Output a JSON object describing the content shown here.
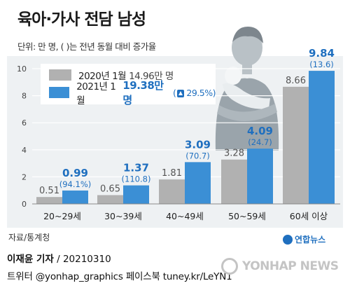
{
  "title": "육아·가사 전담 남성",
  "unit_note": "단위: 만 명, ( )는 전년 동월 대비 증가율",
  "legend": {
    "gray_label": "2020년 1월",
    "gray_value": "14.96만 명",
    "blue_label": "2021년 1월",
    "blue_value": "19.38만 명",
    "blue_change": "29.5%)",
    "blue_change_open": "("
  },
  "source": "자료/통계청",
  "byline_name": "이재윤 기자",
  "byline_date": "/ 20210310",
  "sns_line": "트위터 @yonhap_graphics  페이스북 tuney.kr/LeYN1",
  "logo_small": "연합뉴스",
  "logo_big": "YONHAP NEWS",
  "colors": {
    "gray": "#b1b1b1",
    "blue": "#3b8fd5",
    "blue_text": "#1f6fbf",
    "plot_bg": "#eef1f3"
  },
  "chart_data": {
    "type": "bar",
    "categories": [
      "20~29세",
      "30~39세",
      "40~49세",
      "50~59세",
      "60세 이상"
    ],
    "series": [
      {
        "name": "2020년 1월",
        "values": [
          0.51,
          0.65,
          1.81,
          3.28,
          8.66
        ]
      },
      {
        "name": "2021년 1월",
        "values": [
          0.99,
          1.37,
          3.09,
          4.09,
          9.84
        ]
      }
    ],
    "change_pct": [
      "94.1",
      "110.8",
      "70.7",
      "24.7",
      "13.6"
    ],
    "gray_labels": [
      "0.51",
      "0.65",
      "1.81",
      "3.28",
      "8.66"
    ],
    "blue_labels": [
      "0.99",
      "1.37",
      "3.09",
      "4.09",
      "9.84"
    ],
    "change_labels": [
      "(94.1%)",
      "(110.8)",
      "(70.7)",
      "(24.7)",
      "(13.6)"
    ],
    "yticks": [
      "0",
      "2",
      "4",
      "6",
      "8",
      "10"
    ],
    "ylim": [
      0,
      10.5
    ]
  }
}
